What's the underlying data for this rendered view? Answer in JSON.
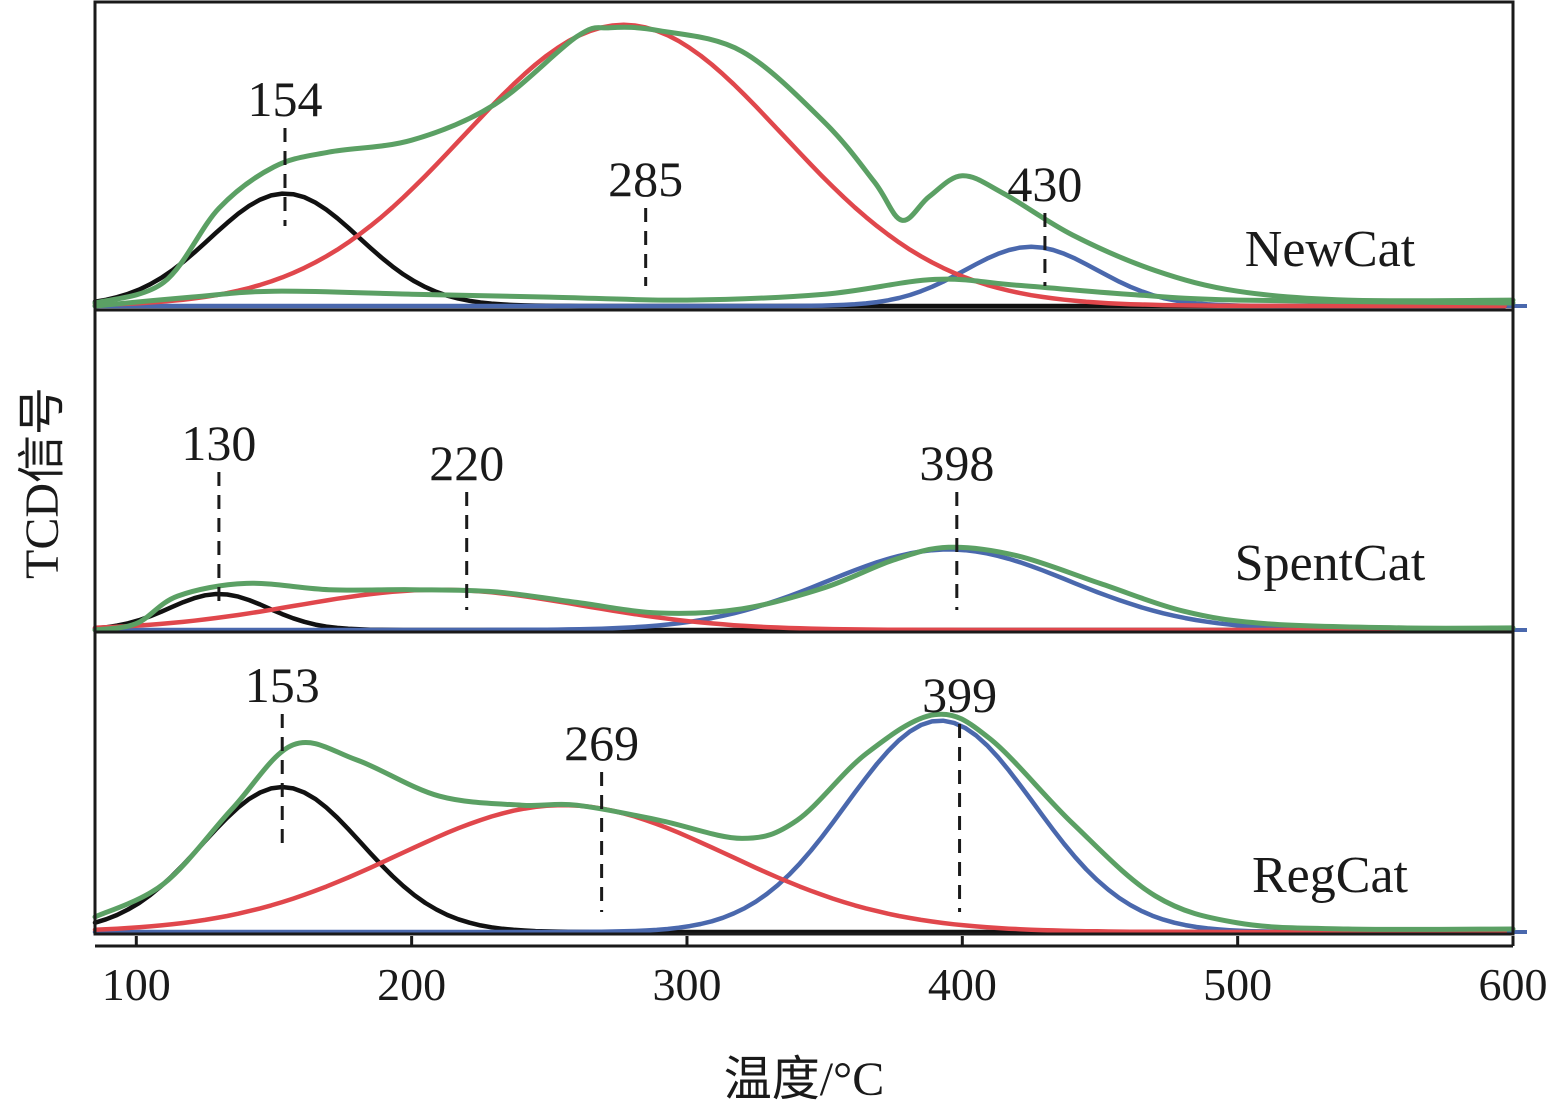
{
  "chart_data": {
    "type": "line",
    "title": "",
    "xlabel": "温度/°C",
    "ylabel": "TCD信号",
    "xlim": [
      85,
      600
    ],
    "x_ticks": [
      100,
      200,
      300,
      400,
      500,
      600
    ],
    "grid": false,
    "colors": {
      "measured": "#5ba064",
      "peak_low": "#111111",
      "peak_mid": "#e0474c",
      "peak_high": "#4a68ad"
    },
    "panels": [
      {
        "name": "NewCat",
        "peak_markers": [
          154,
          285,
          430
        ],
        "series": [
          {
            "role": "peak_low",
            "center": 154,
            "amplitude": 0.38,
            "width": 27
          },
          {
            "role": "peak_mid",
            "center": 277,
            "amplitude": 0.95,
            "width": 58
          },
          {
            "role": "peak_high",
            "center": 425,
            "amplitude": 0.2,
            "width": 24
          },
          {
            "role": "measured",
            "points": [
              [
                85,
                0.01
              ],
              [
                110,
                0.08
              ],
              [
                130,
                0.33
              ],
              [
                150,
                0.47
              ],
              [
                170,
                0.52
              ],
              [
                200,
                0.56
              ],
              [
                230,
                0.68
              ],
              [
                260,
                0.91
              ],
              [
                272,
                0.94
              ],
              [
                290,
                0.93
              ],
              [
                320,
                0.86
              ],
              [
                350,
                0.62
              ],
              [
                368,
                0.42
              ],
              [
                378,
                0.29
              ],
              [
                388,
                0.37
              ],
              [
                400,
                0.44
              ],
              [
                415,
                0.38
              ],
              [
                440,
                0.24
              ],
              [
                470,
                0.12
              ],
              [
                500,
                0.05
              ],
              [
                540,
                0.02
              ],
              [
                600,
                0.02
              ]
            ]
          },
          {
            "role": "measured",
            "points": [
              [
                85,
                0.0
              ],
              [
                120,
                0.03
              ],
              [
                150,
                0.05
              ],
              [
                200,
                0.04
              ],
              [
                250,
                0.03
              ],
              [
                300,
                0.02
              ],
              [
                350,
                0.04
              ],
              [
                390,
                0.09
              ],
              [
                420,
                0.07
              ],
              [
                460,
                0.04
              ],
              [
                500,
                0.02
              ],
              [
                600,
                0.01
              ]
            ]
          }
        ]
      },
      {
        "name": "SpentCat",
        "peak_markers": [
          130,
          220,
          398
        ],
        "series": [
          {
            "role": "peak_low",
            "center": 130,
            "amplitude": 0.17,
            "width": 18
          },
          {
            "role": "peak_mid",
            "center": 210,
            "amplitude": 0.19,
            "width": 52
          },
          {
            "role": "peak_high",
            "center": 395,
            "amplitude": 0.38,
            "width": 44
          },
          {
            "role": "measured",
            "points": [
              [
                85,
                0.0
              ],
              [
                100,
                0.03
              ],
              [
                115,
                0.16
              ],
              [
                140,
                0.22
              ],
              [
                170,
                0.19
              ],
              [
                200,
                0.19
              ],
              [
                230,
                0.18
              ],
              [
                260,
                0.13
              ],
              [
                290,
                0.08
              ],
              [
                320,
                0.1
              ],
              [
                350,
                0.2
              ],
              [
                375,
                0.33
              ],
              [
                395,
                0.39
              ],
              [
                420,
                0.35
              ],
              [
                450,
                0.22
              ],
              [
                480,
                0.09
              ],
              [
                510,
                0.03
              ],
              [
                560,
                0.01
              ],
              [
                600,
                0.01
              ]
            ]
          }
        ]
      },
      {
        "name": "RegCat",
        "peak_markers": [
          153,
          269,
          399
        ],
        "series": [
          {
            "role": "peak_low",
            "center": 153,
            "amplitude": 0.48,
            "width": 29
          },
          {
            "role": "peak_mid",
            "center": 255,
            "amplitude": 0.42,
            "width": 60
          },
          {
            "role": "peak_high",
            "center": 392,
            "amplitude": 0.7,
            "width": 34
          },
          {
            "role": "measured",
            "points": [
              [
                85,
                0.05
              ],
              [
                110,
                0.16
              ],
              [
                135,
                0.41
              ],
              [
                157,
                0.62
              ],
              [
                180,
                0.57
              ],
              [
                210,
                0.45
              ],
              [
                240,
                0.42
              ],
              [
                260,
                0.42
              ],
              [
                290,
                0.37
              ],
              [
                320,
                0.31
              ],
              [
                340,
                0.37
              ],
              [
                365,
                0.59
              ],
              [
                390,
                0.72
              ],
              [
                410,
                0.64
              ],
              [
                440,
                0.36
              ],
              [
                470,
                0.12
              ],
              [
                500,
                0.03
              ],
              [
                540,
                0.01
              ],
              [
                600,
                0.01
              ]
            ]
          }
        ]
      }
    ]
  }
}
